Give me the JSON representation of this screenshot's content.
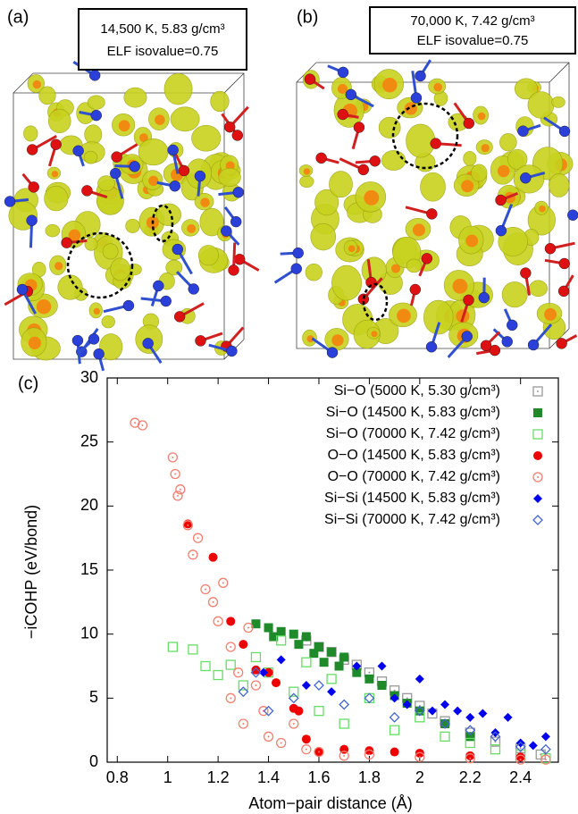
{
  "panels": [
    {
      "label": "(a)",
      "caption_lines": [
        "14,500 K, 5.83 g/cm³",
        "ELF isovalue=0.75"
      ]
    },
    {
      "label": "(b)",
      "caption_lines": [
        "70,000 K, 7.42 g/cm³",
        "ELF isovalue=0.75"
      ]
    }
  ],
  "chart_data": {
    "type": "scatter",
    "label": "(c)",
    "xlabel": "Atom−pair distance (Å)",
    "ylabel": "−iCOHP (eV/bond)",
    "xlim": [
      0.76,
      2.55
    ],
    "ylim": [
      0,
      30
    ],
    "xticks": [
      0.8,
      1,
      1.2,
      1.4,
      1.6,
      1.8,
      2,
      2.2,
      2.4
    ],
    "yticks": [
      0,
      5,
      10,
      15,
      20,
      25,
      30
    ],
    "legend": "top-right",
    "series": [
      {
        "name": "Si−O (5000 K, 5.30 g/cm³)",
        "color": "#999999",
        "marker": "square-dot",
        "x": [
          1.55,
          1.6,
          1.65,
          1.7,
          1.75,
          1.8,
          1.85,
          1.9,
          1.95,
          2.0,
          2.05,
          2.1,
          2.2,
          2.3,
          2.4,
          2.48
        ],
        "values": [
          9.5,
          9,
          8.6,
          8,
          7.6,
          7,
          6.3,
          5.6,
          5,
          4.4,
          3.8,
          3.2,
          2.3,
          1.6,
          1.1,
          0.6
        ]
      },
      {
        "name": "Si−O (14500 K, 5.83 g/cm³)",
        "color": "#1e8a2a",
        "marker": "square",
        "x": [
          1.35,
          1.4,
          1.42,
          1.45,
          1.5,
          1.52,
          1.55,
          1.58,
          1.6,
          1.62,
          1.65,
          1.68,
          1.7,
          1.75,
          1.8,
          1.85,
          1.9,
          1.95,
          2.0,
          2.1,
          2.2
        ],
        "values": [
          10.8,
          10.5,
          9.8,
          10.2,
          10,
          9.2,
          9.8,
          8.5,
          9,
          7.8,
          8.6,
          7.5,
          8.2,
          7,
          6.5,
          6,
          5.2,
          4.6,
          4,
          3,
          2
        ]
      },
      {
        "name": "Si−O (70000 K, 7.42 g/cm³)",
        "color": "#66dd66",
        "marker": "square-open",
        "x": [
          1.02,
          1.1,
          1.15,
          1.2,
          1.25,
          1.3,
          1.35,
          1.4,
          1.45,
          1.5,
          1.55,
          1.6,
          1.65,
          1.7,
          1.8,
          1.9,
          2.0,
          2.1,
          2.2,
          2.3,
          2.4,
          2.5
        ],
        "values": [
          9,
          8.8,
          7.5,
          6.8,
          7.6,
          6,
          8.2,
          7,
          9.5,
          5.5,
          7.8,
          4,
          6.5,
          3,
          5,
          2.5,
          3.5,
          2,
          1.5,
          1,
          0.6,
          0.3
        ]
      },
      {
        "name": "O−O (14500 K, 5.83 g/cm³)",
        "color": "#ee0000",
        "marker": "circle",
        "x": [
          1.08,
          1.18,
          1.25,
          1.3,
          1.35,
          1.4,
          1.43,
          1.5,
          1.52,
          1.55,
          1.6,
          1.7,
          1.8,
          1.9,
          2.0,
          2.2,
          2.4
        ],
        "values": [
          18.6,
          16,
          11,
          9.2,
          7.2,
          7,
          6.2,
          4.2,
          4,
          1.8,
          0.8,
          1.0,
          0.9,
          0.8,
          0.7,
          0.5,
          0.4
        ]
      },
      {
        "name": "O−O (70000 K, 7.42 g/cm³)",
        "color": "#f08070",
        "marker": "circle-dot",
        "x": [
          0.87,
          0.9,
          1.02,
          1.03,
          1.04,
          1.05,
          1.08,
          1.1,
          1.12,
          1.15,
          1.18,
          1.2,
          1.22,
          1.25,
          1.25,
          1.28,
          1.3,
          1.32,
          1.35,
          1.38,
          1.4,
          1.45,
          1.5,
          1.55,
          1.6,
          1.7,
          1.8,
          2.0,
          2.2,
          2.4,
          2.5
        ],
        "values": [
          26.5,
          26.3,
          23.8,
          22.5,
          20.8,
          21.3,
          18.5,
          16.2,
          17.5,
          13.5,
          12.5,
          11,
          14,
          9,
          5,
          7,
          3,
          10.5,
          6,
          4,
          2,
          1.5,
          3,
          1,
          0.8,
          0.5,
          0.6,
          0.4,
          0.3,
          0.2,
          0.2
        ]
      },
      {
        "name": "Si−Si (14500 K, 5.83 g/cm³)",
        "color": "#0000ee",
        "marker": "diamond",
        "x": [
          1.38,
          1.45,
          1.55,
          1.65,
          1.75,
          1.85,
          1.9,
          1.95,
          2.0,
          2.05,
          2.1,
          2.15,
          2.2,
          2.25,
          2.3,
          2.35,
          2.4,
          2.45,
          2.5
        ],
        "values": [
          7,
          8,
          6,
          5.5,
          7.5,
          7.5,
          5,
          4.5,
          6.5,
          4,
          4.5,
          4,
          3.5,
          3.8,
          2.3,
          3.5,
          1.5,
          1.3,
          2.0
        ]
      },
      {
        "name": "Si−Si (70000 K, 7.42 g/cm³)",
        "color": "#4466cc",
        "marker": "diamond-open",
        "x": [
          1.3,
          1.35,
          1.4,
          1.5,
          1.6,
          1.7,
          1.8,
          1.9,
          2.0,
          2.1,
          2.2,
          2.3,
          2.4,
          2.5
        ],
        "values": [
          5.5,
          7,
          4,
          5,
          6,
          4.5,
          5,
          3.5,
          4,
          3,
          2.5,
          2,
          1.2,
          1
        ]
      }
    ]
  }
}
